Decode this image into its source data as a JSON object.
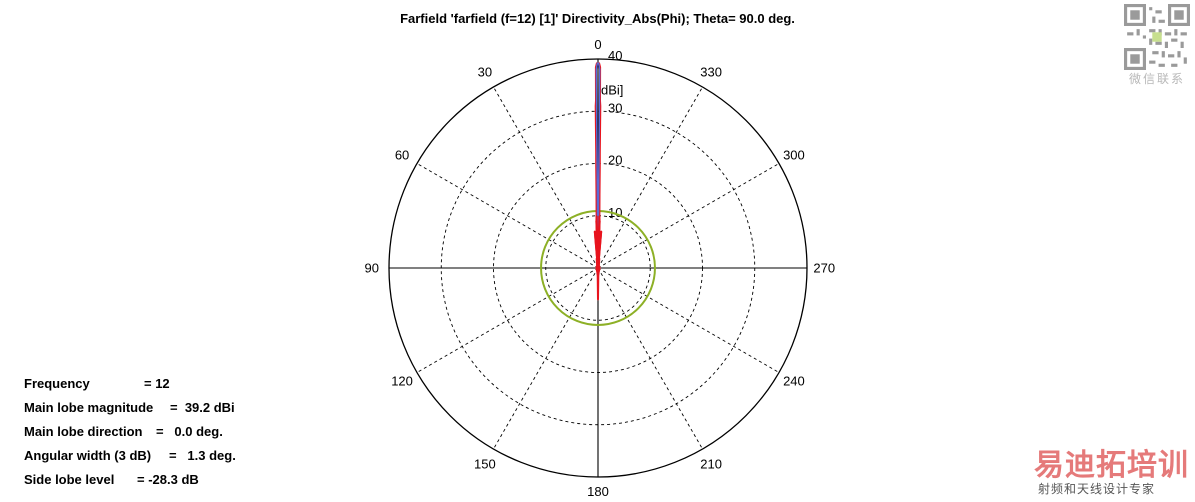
{
  "title": "Farfield 'farfield (f=12) [1]' Directivity_Abs(Phi); Theta=  90.0 deg.",
  "info": [
    {
      "label": "Frequency",
      "value": "= 12"
    },
    {
      "label": "Main lobe magnitude",
      "value": "=  39.2 dBi"
    },
    {
      "label": "Main lobe direction",
      "value": "=   0.0 deg."
    },
    {
      "label": "Angular width (3 dB)",
      "value": "=   1.3 deg."
    },
    {
      "label": "Side lobe level",
      "value": "= -28.3 dB"
    }
  ],
  "watermark": {
    "qr_caption": "微信联系",
    "brand": "易迪拓培训",
    "subtitle": "射频和天线设计专家"
  },
  "colors": {
    "main_trace": "#e8141e",
    "reference_trace": "#5b6bd6",
    "sidelobe_circle": "#8db026",
    "grid": "#000000"
  },
  "chart_data": {
    "type": "polar",
    "title": "Farfield 'farfield (f=12) [1]' Directivity_Abs(Phi); Theta=  90.0 deg.",
    "angle_unit": "deg",
    "angle_ticks": [
      "0",
      "30",
      "60",
      "90",
      "120",
      "150",
      "180",
      "210",
      "240",
      "270",
      "300",
      "330"
    ],
    "angle_tick_values": [
      0,
      30,
      60,
      90,
      120,
      150,
      180,
      210,
      240,
      270,
      300,
      330
    ],
    "radial_unit": "dBi",
    "radial_ticks": [
      "40",
      "30",
      "20",
      "10"
    ],
    "radial_tick_values": [
      40,
      30,
      20,
      10
    ],
    "radial_range": [
      0,
      40
    ],
    "angle_zero": "top",
    "angle_direction": "counterclockwise",
    "sidelobe_level_ring": 10.9,
    "series": [
      {
        "role": "main",
        "color": "#e8141e",
        "points": [
          [
            -8,
            1.8
          ],
          [
            -6,
            1.5
          ],
          [
            -5,
            7
          ],
          [
            -4.5,
            1.2
          ],
          [
            -4,
            6.5
          ],
          [
            -3.5,
            1.2
          ],
          [
            -3,
            6.3
          ],
          [
            -2.5,
            1.5
          ],
          [
            -2,
            9
          ],
          [
            -1.5,
            10
          ],
          [
            -1.2,
            14
          ],
          [
            -1.0,
            20
          ],
          [
            -0.9,
            22
          ],
          [
            -0.8,
            31
          ],
          [
            -0.7,
            32
          ],
          [
            -0.6,
            38.4
          ],
          [
            -0.3,
            39.2
          ],
          [
            0,
            39.2
          ],
          [
            0.3,
            39.2
          ],
          [
            0.6,
            38.4
          ],
          [
            0.7,
            32
          ],
          [
            0.8,
            31
          ],
          [
            0.9,
            22
          ],
          [
            1.0,
            20
          ],
          [
            1.2,
            14
          ],
          [
            1.5,
            10
          ],
          [
            2,
            9
          ],
          [
            2.5,
            1.5
          ],
          [
            3,
            6.3
          ],
          [
            3.5,
            1.2
          ],
          [
            4,
            6.5
          ],
          [
            4.5,
            1.2
          ],
          [
            5,
            7
          ],
          [
            6,
            1.5
          ],
          [
            8,
            1.8
          ],
          [
            20,
            0.5
          ],
          [
            90,
            0.3
          ],
          [
            170,
            0.8
          ],
          [
            178,
            1.5
          ],
          [
            180,
            6
          ],
          [
            182,
            1.5
          ],
          [
            190,
            0.8
          ],
          [
            270,
            0.3
          ],
          [
            340,
            0.5
          ],
          [
            352,
            1.8
          ]
        ]
      },
      {
        "role": "reference",
        "color": "#5b6bd6",
        "points": [
          [
            -0.5,
            0
          ],
          [
            -0.5,
            38
          ],
          [
            -0.2,
            39.2
          ],
          [
            0,
            39.2
          ],
          [
            0.2,
            39.2
          ],
          [
            0.5,
            38
          ],
          [
            0.5,
            0
          ]
        ]
      }
    ]
  }
}
